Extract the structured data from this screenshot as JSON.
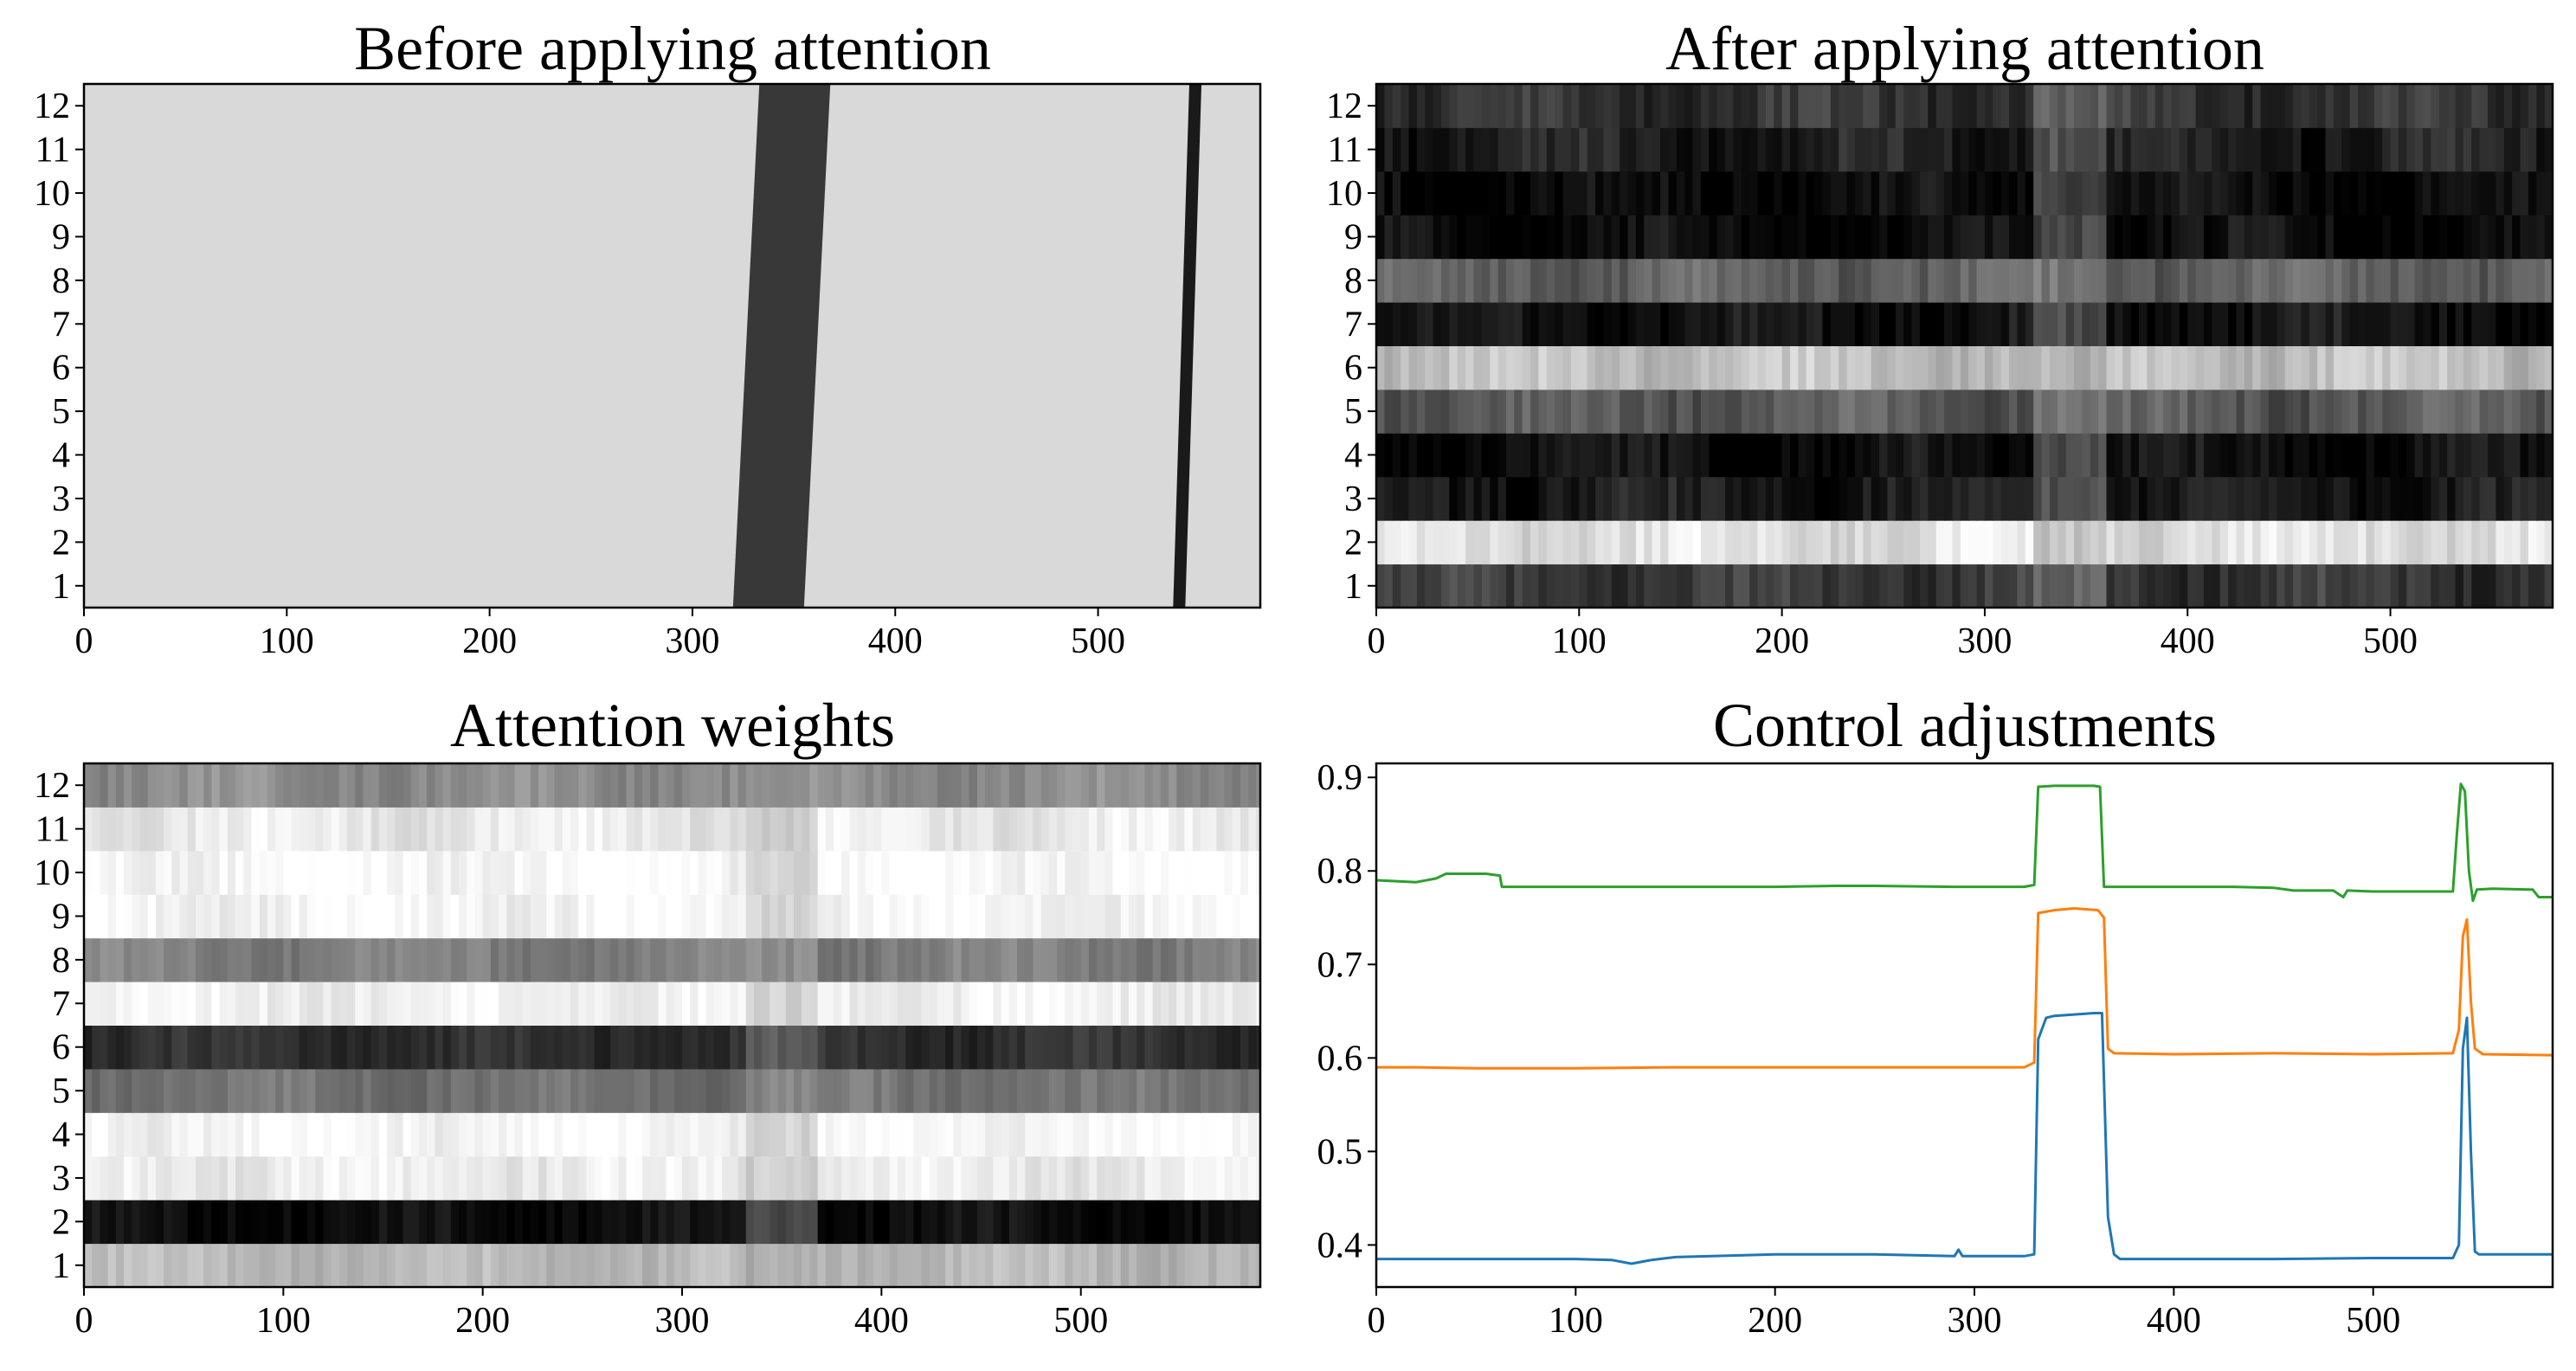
{
  "figure": {
    "panels": [
      {
        "id": "before",
        "title": "Before applying attention",
        "type": "heatmap",
        "yticks": [
          "1",
          "2",
          "3",
          "4",
          "5",
          "6",
          "7",
          "8",
          "9",
          "10",
          "11",
          "12"
        ],
        "xticks": [
          "0",
          "100",
          "200",
          "300",
          "400",
          "500"
        ],
        "xrange": [
          0,
          580
        ],
        "colormap": "gray"
      },
      {
        "id": "after",
        "title": "After applying attention",
        "type": "heatmap",
        "yticks": [
          "1",
          "2",
          "3",
          "4",
          "5",
          "6",
          "7",
          "8",
          "9",
          "10",
          "11",
          "12"
        ],
        "xticks": [
          "0",
          "100",
          "200",
          "300",
          "400",
          "500"
        ],
        "xrange": [
          0,
          580
        ],
        "colormap": "gray"
      },
      {
        "id": "weights",
        "title": "Attention weights",
        "type": "heatmap",
        "yticks": [
          "1",
          "2",
          "3",
          "4",
          "5",
          "6",
          "7",
          "8",
          "9",
          "10",
          "11",
          "12"
        ],
        "xticks": [
          "0",
          "100",
          "200",
          "300",
          "400",
          "500"
        ],
        "xrange": [
          0,
          590
        ],
        "colormap": "gray"
      },
      {
        "id": "control",
        "title": "Control adjustments",
        "type": "line",
        "yticks": [
          "0.4",
          "0.5",
          "0.6",
          "0.7",
          "0.8",
          "0.9"
        ],
        "xticks": [
          "0",
          "100",
          "200",
          "300",
          "400",
          "500"
        ],
        "xrange": [
          0,
          590
        ],
        "yrange": [
          0.355,
          0.915
        ]
      }
    ]
  },
  "chart_data": [
    {
      "type": "heatmap",
      "title": "Before applying attention",
      "rows": 12,
      "xlim": [
        0,
        580
      ],
      "yticks": [
        1,
        2,
        3,
        4,
        5,
        6,
        7,
        8,
        9,
        10,
        11,
        12
      ],
      "xticks": [
        0,
        100,
        200,
        300,
        400,
        500
      ],
      "description_values": {
        "background_intensity": 0.85,
        "dark_band": {
          "x_start_row1": 320,
          "x_end_row1": 355,
          "x_start_row12": 333,
          "x_end_row12": 368,
          "intensity": 0.22
        },
        "dark_line": {
          "x_row1": 537,
          "x_row12": 545,
          "width": 6,
          "intensity": 0.1
        }
      }
    },
    {
      "type": "heatmap",
      "title": "After applying attention",
      "rows": 12,
      "xlim": [
        0,
        580
      ],
      "yticks": [
        1,
        2,
        3,
        4,
        5,
        6,
        7,
        8,
        9,
        10,
        11,
        12
      ],
      "xticks": [
        0,
        100,
        200,
        300,
        400,
        500
      ],
      "row_intensity": [
        0.22,
        0.88,
        0.1,
        0.05,
        0.35,
        0.75,
        0.07,
        0.38,
        0.04,
        0.04,
        0.12,
        0.2
      ],
      "attention_region": [
        322,
        358
      ]
    },
    {
      "type": "heatmap",
      "title": "Attention weights",
      "rows": 12,
      "xlim": [
        0,
        590
      ],
      "yticks": [
        1,
        2,
        3,
        4,
        5,
        6,
        7,
        8,
        9,
        10,
        11,
        12
      ],
      "xticks": [
        0,
        100,
        200,
        300,
        400,
        500
      ],
      "row_intensity": [
        0.72,
        0.05,
        0.93,
        0.97,
        0.45,
        0.18,
        0.95,
        0.5,
        0.97,
        0.98,
        0.92,
        0.55
      ],
      "attention_region": [
        330,
        365
      ]
    },
    {
      "type": "line",
      "title": "Control adjustments",
      "xlim": [
        0,
        590
      ],
      "ylim": [
        0.355,
        0.915
      ],
      "yticks": [
        0.4,
        0.5,
        0.6,
        0.7,
        0.8,
        0.9
      ],
      "xticks": [
        0,
        100,
        200,
        300,
        400,
        500
      ],
      "series": [
        {
          "name": "blue",
          "color": "#1f77b4",
          "points": [
            [
              0,
              0.385
            ],
            [
              50,
              0.385
            ],
            [
              100,
              0.385
            ],
            [
              118,
              0.384
            ],
            [
              128,
              0.38
            ],
            [
              138,
              0.384
            ],
            [
              150,
              0.387
            ],
            [
              200,
              0.39
            ],
            [
              250,
              0.39
            ],
            [
              290,
              0.388
            ],
            [
              292,
              0.395
            ],
            [
              294,
              0.388
            ],
            [
              325,
              0.388
            ],
            [
              330,
              0.39
            ],
            [
              332,
              0.62
            ],
            [
              336,
              0.643
            ],
            [
              340,
              0.645
            ],
            [
              360,
              0.648
            ],
            [
              364,
              0.648
            ],
            [
              367,
              0.43
            ],
            [
              370,
              0.39
            ],
            [
              373,
              0.385
            ],
            [
              400,
              0.385
            ],
            [
              450,
              0.385
            ],
            [
              500,
              0.386
            ],
            [
              540,
              0.386
            ],
            [
              543,
              0.4
            ],
            [
              545,
              0.61
            ],
            [
              547,
              0.643
            ],
            [
              549,
              0.5
            ],
            [
              551,
              0.393
            ],
            [
              553,
              0.39
            ],
            [
              560,
              0.39
            ],
            [
              590,
              0.39
            ]
          ]
        },
        {
          "name": "orange",
          "color": "#ff7f0e",
          "points": [
            [
              0,
              0.59
            ],
            [
              20,
              0.59
            ],
            [
              50,
              0.589
            ],
            [
              100,
              0.589
            ],
            [
              150,
              0.59
            ],
            [
              200,
              0.59
            ],
            [
              250,
              0.59
            ],
            [
              300,
              0.59
            ],
            [
              325,
              0.59
            ],
            [
              330,
              0.595
            ],
            [
              332,
              0.755
            ],
            [
              340,
              0.758
            ],
            [
              350,
              0.76
            ],
            [
              362,
              0.758
            ],
            [
              365,
              0.75
            ],
            [
              367,
              0.61
            ],
            [
              370,
              0.605
            ],
            [
              400,
              0.604
            ],
            [
              450,
              0.605
            ],
            [
              500,
              0.604
            ],
            [
              540,
              0.605
            ],
            [
              543,
              0.63
            ],
            [
              545,
              0.73
            ],
            [
              547,
              0.748
            ],
            [
              549,
              0.66
            ],
            [
              551,
              0.61
            ],
            [
              555,
              0.604
            ],
            [
              590,
              0.603
            ]
          ]
        },
        {
          "name": "green",
          "color": "#2ca02c",
          "points": [
            [
              0,
              0.79
            ],
            [
              20,
              0.788
            ],
            [
              30,
              0.792
            ],
            [
              35,
              0.797
            ],
            [
              55,
              0.797
            ],
            [
              62,
              0.795
            ],
            [
              63,
              0.783
            ],
            [
              80,
              0.783
            ],
            [
              100,
              0.783
            ],
            [
              150,
              0.783
            ],
            [
              200,
              0.783
            ],
            [
              230,
              0.784
            ],
            [
              250,
              0.784
            ],
            [
              290,
              0.783
            ],
            [
              325,
              0.783
            ],
            [
              330,
              0.785
            ],
            [
              332,
              0.89
            ],
            [
              340,
              0.891
            ],
            [
              360,
              0.891
            ],
            [
              363,
              0.89
            ],
            [
              365,
              0.783
            ],
            [
              370,
              0.783
            ],
            [
              400,
              0.783
            ],
            [
              430,
              0.783
            ],
            [
              450,
              0.782
            ],
            [
              460,
              0.779
            ],
            [
              480,
              0.779
            ],
            [
              485,
              0.772
            ],
            [
              487,
              0.779
            ],
            [
              500,
              0.778
            ],
            [
              540,
              0.778
            ],
            [
              542,
              0.84
            ],
            [
              544,
              0.893
            ],
            [
              546,
              0.885
            ],
            [
              548,
              0.8
            ],
            [
              550,
              0.768
            ],
            [
              552,
              0.78
            ],
            [
              560,
              0.781
            ],
            [
              580,
              0.78
            ],
            [
              583,
              0.772
            ],
            [
              590,
              0.772
            ]
          ]
        }
      ]
    }
  ]
}
